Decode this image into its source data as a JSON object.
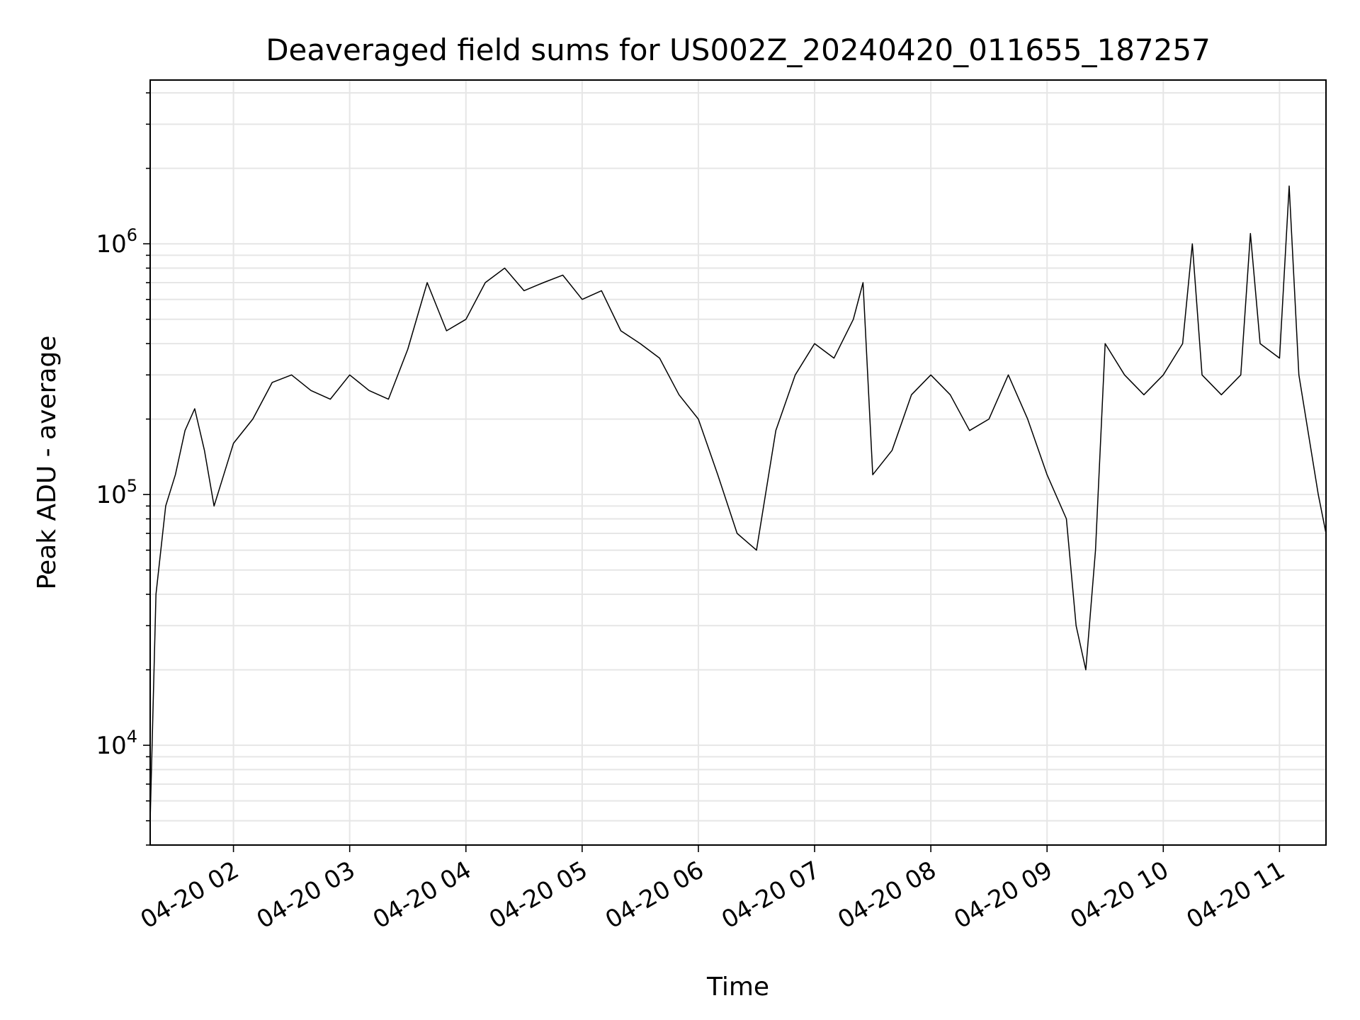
{
  "chart_data": {
    "type": "line",
    "title": "Deaveraged field sums for US002Z_20240420_011655_187257",
    "xlabel": "Time",
    "ylabel": "Peak ADU - average",
    "xscale": "time",
    "yscale": "log",
    "xlim": [
      "2024-04-20 01:17",
      "2024-04-20 11:24"
    ],
    "ylim": [
      4000,
      4500000
    ],
    "grid": true,
    "line_color": "#000000",
    "grid_color": "#e6e6e6",
    "x_ticks": [
      "04-20 02",
      "04-20 03",
      "04-20 04",
      "04-20 05",
      "04-20 06",
      "04-20 07",
      "04-20 08",
      "04-20 09",
      "04-20 10",
      "04-20 11"
    ],
    "y_ticks": [
      {
        "base": "10",
        "exp": "4",
        "value": 10000
      },
      {
        "base": "10",
        "exp": "5",
        "value": 100000
      },
      {
        "base": "10",
        "exp": "6",
        "value": 1000000
      }
    ],
    "series": [
      {
        "x": [
          "2024-04-20 01:17",
          "2024-04-20 01:20",
          "2024-04-20 01:25",
          "2024-04-20 01:30",
          "2024-04-20 01:35",
          "2024-04-20 01:40",
          "2024-04-20 01:45",
          "2024-04-20 01:50",
          "2024-04-20 01:55",
          "2024-04-20 02:00",
          "2024-04-20 02:10",
          "2024-04-20 02:20",
          "2024-04-20 02:30",
          "2024-04-20 02:40",
          "2024-04-20 02:50",
          "2024-04-20 03:00",
          "2024-04-20 03:10",
          "2024-04-20 03:20",
          "2024-04-20 03:30",
          "2024-04-20 03:40",
          "2024-04-20 03:50",
          "2024-04-20 04:00",
          "2024-04-20 04:10",
          "2024-04-20 04:20",
          "2024-04-20 04:30",
          "2024-04-20 04:40",
          "2024-04-20 04:50",
          "2024-04-20 05:00",
          "2024-04-20 05:10",
          "2024-04-20 05:20",
          "2024-04-20 05:30",
          "2024-04-20 05:40",
          "2024-04-20 05:50",
          "2024-04-20 06:00",
          "2024-04-20 06:10",
          "2024-04-20 06:20",
          "2024-04-20 06:30",
          "2024-04-20 06:40",
          "2024-04-20 06:50",
          "2024-04-20 07:00",
          "2024-04-20 07:10",
          "2024-04-20 07:20",
          "2024-04-20 07:25",
          "2024-04-20 07:30",
          "2024-04-20 07:40",
          "2024-04-20 07:50",
          "2024-04-20 08:00",
          "2024-04-20 08:10",
          "2024-04-20 08:20",
          "2024-04-20 08:30",
          "2024-04-20 08:40",
          "2024-04-20 08:50",
          "2024-04-20 09:00",
          "2024-04-20 09:10",
          "2024-04-20 09:15",
          "2024-04-20 09:20",
          "2024-04-20 09:25",
          "2024-04-20 09:30",
          "2024-04-20 09:40",
          "2024-04-20 09:50",
          "2024-04-20 10:00",
          "2024-04-20 10:10",
          "2024-04-20 10:15",
          "2024-04-20 10:20",
          "2024-04-20 10:30",
          "2024-04-20 10:40",
          "2024-04-20 10:45",
          "2024-04-20 10:50",
          "2024-04-20 11:00",
          "2024-04-20 11:05",
          "2024-04-20 11:10",
          "2024-04-20 11:20",
          "2024-04-20 11:24"
        ],
        "y": [
          5000,
          40000,
          90000,
          120000,
          180000,
          220000,
          150000,
          90000,
          120000,
          160000,
          200000,
          280000,
          300000,
          260000,
          240000,
          300000,
          260000,
          240000,
          380000,
          700000,
          450000,
          500000,
          700000,
          800000,
          650000,
          700000,
          750000,
          600000,
          650000,
          450000,
          400000,
          350000,
          250000,
          200000,
          120000,
          70000,
          60000,
          180000,
          300000,
          400000,
          350000,
          500000,
          700000,
          120000,
          150000,
          250000,
          300000,
          250000,
          180000,
          200000,
          300000,
          200000,
          120000,
          80000,
          30000,
          20000,
          60000,
          400000,
          300000,
          250000,
          300000,
          400000,
          1000000,
          300000,
          250000,
          300000,
          1100000,
          400000,
          350000,
          1700000,
          300000,
          100000,
          70000
        ]
      }
    ]
  }
}
